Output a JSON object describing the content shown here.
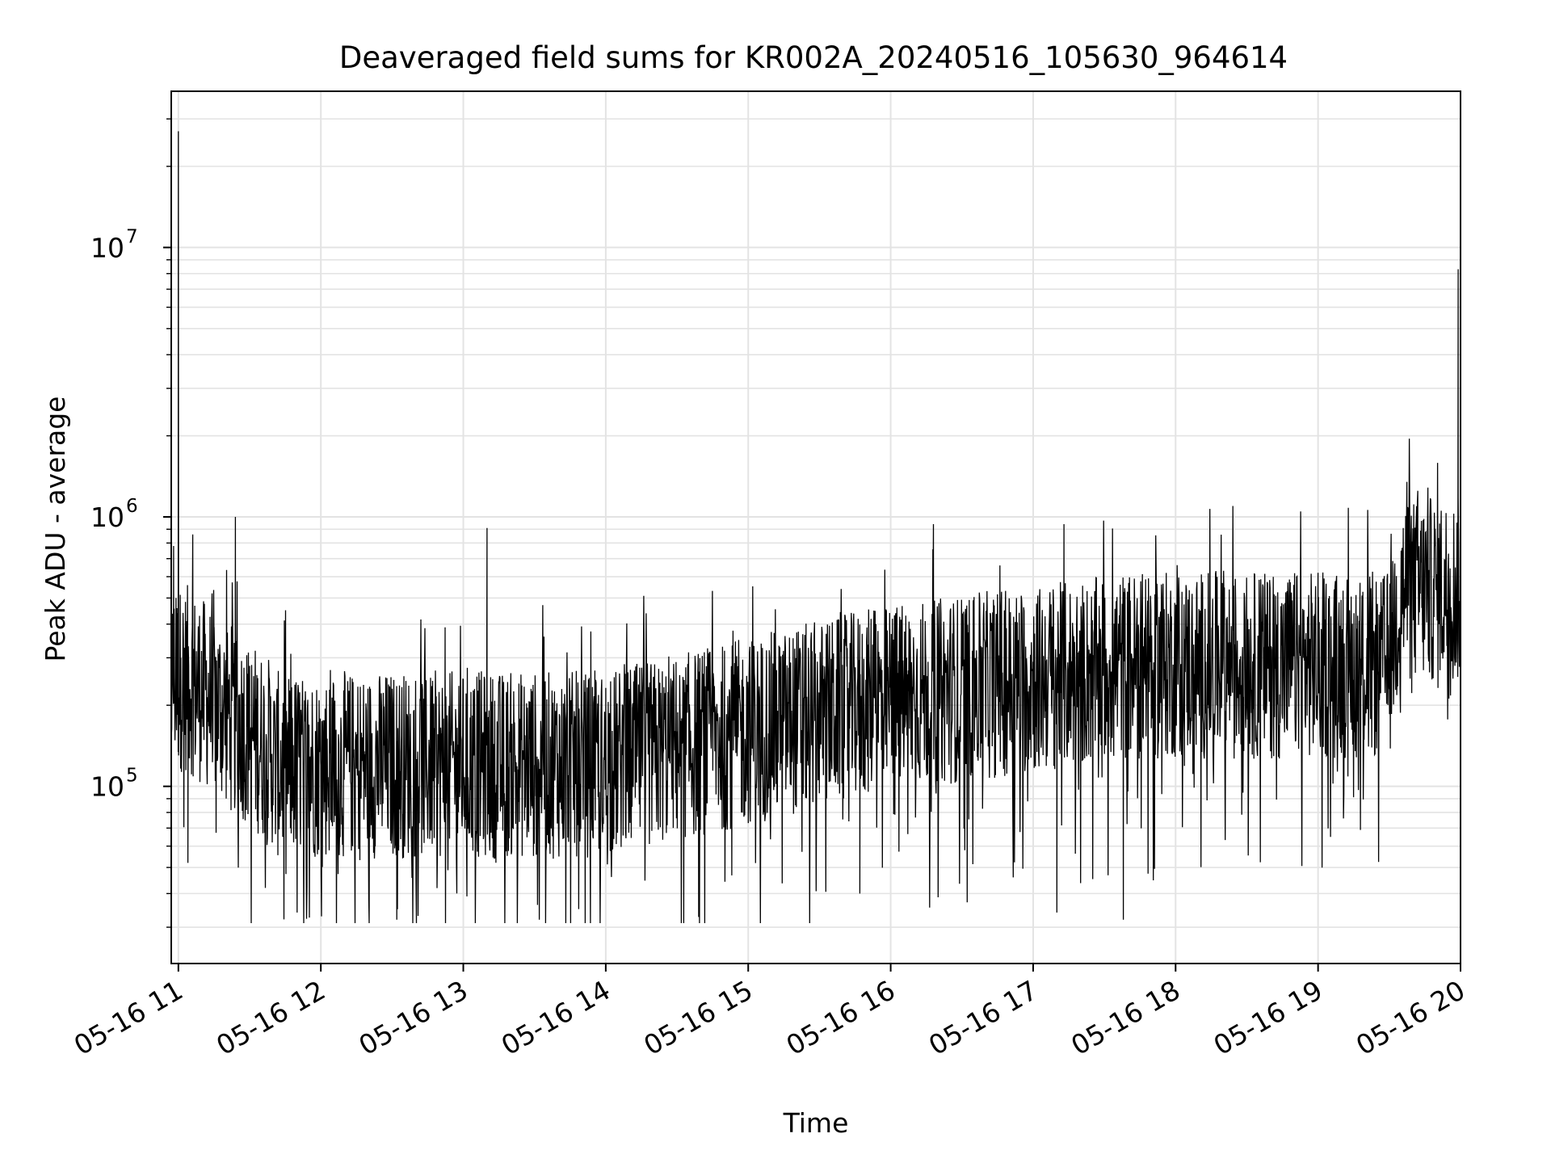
{
  "chart_data": {
    "type": "line",
    "title": "Deaveraged field sums for KR002A_20240516_105630_964614",
    "xlabel": "Time",
    "ylabel": "Peak ADU - average",
    "yscale": "log",
    "xlim": [
      "2024-05-16 10:57",
      "2024-05-16 20:00"
    ],
    "ylim": [
      22000,
      38000000
    ],
    "grid": true,
    "x_ticks": [
      "05-16 11",
      "05-16 12",
      "05-16 13",
      "05-16 14",
      "05-16 15",
      "05-16 16",
      "05-16 17",
      "05-16 18",
      "05-16 19",
      "05-16 20"
    ],
    "y_ticks": [
      {
        "value": 100000,
        "base": "10",
        "exp": "5"
      },
      {
        "value": 1000000,
        "base": "10",
        "exp": "6"
      },
      {
        "value": 10000000,
        "base": "10",
        "exp": "7"
      }
    ],
    "series": [
      {
        "color": "#000000",
        "points": [
          [
            "2024-05-16 10:56",
            55000
          ],
          [
            "2024-05-16 10:57",
            400000
          ],
          [
            "2024-05-16 10:58",
            780000
          ],
          [
            "2024-05-16 10:59",
            500000
          ],
          [
            "2024-05-16 11:00",
            27000000
          ],
          [
            "2024-05-16 11:01",
            300000
          ],
          [
            "2024-05-16 11:04",
            52000
          ],
          [
            "2024-05-16 11:10",
            180000
          ],
          [
            "2024-05-16 11:15",
            350000
          ],
          [
            "2024-05-16 11:20",
            200000
          ],
          [
            "2024-05-16 11:24",
            1000000
          ],
          [
            "2024-05-16 11:30",
            280000
          ],
          [
            "2024-05-16 11:35",
            160000
          ],
          [
            "2024-05-16 11:40",
            130000
          ],
          [
            "2024-05-16 11:45",
            120000
          ],
          [
            "2024-05-16 11:50",
            34000
          ],
          [
            "2024-05-16 12:00",
            120000
          ],
          [
            "2024-05-16 12:30",
            110000
          ],
          [
            "2024-05-16 12:32",
            32000
          ],
          [
            "2024-05-16 13:00",
            120000
          ],
          [
            "2024-05-16 13:10",
            910000
          ],
          [
            "2024-05-16 13:30",
            120000
          ],
          [
            "2024-05-16 13:32",
            32000
          ],
          [
            "2024-05-16 14:00",
            130000
          ],
          [
            "2024-05-16 14:30",
            160000
          ],
          [
            "2024-05-16 15:00",
            210000
          ],
          [
            "2024-05-16 15:30",
            220000
          ],
          [
            "2024-05-16 15:47",
            40000
          ],
          [
            "2024-05-16 16:00",
            250000
          ],
          [
            "2024-05-16 16:18",
            940000
          ],
          [
            "2024-05-16 16:30",
            270000
          ],
          [
            "2024-05-16 17:00",
            290000
          ],
          [
            "2024-05-16 17:10",
            34000
          ],
          [
            "2024-05-16 17:13",
            940000
          ],
          [
            "2024-05-16 17:30",
            300000
          ],
          [
            "2024-05-16 17:38",
            32000
          ],
          [
            "2024-05-16 18:00",
            310000
          ],
          [
            "2024-05-16 18:30",
            300000
          ],
          [
            "2024-05-16 19:00",
            290000
          ],
          [
            "2024-05-16 19:30",
            300000
          ],
          [
            "2024-05-16 19:35",
            750000
          ],
          [
            "2024-05-16 19:42",
            1250000
          ],
          [
            "2024-05-16 19:50",
            600000
          ],
          [
            "2024-05-16 19:59",
            8300000
          ],
          [
            "2024-05-16 20:00",
            550000
          ]
        ]
      }
    ]
  }
}
